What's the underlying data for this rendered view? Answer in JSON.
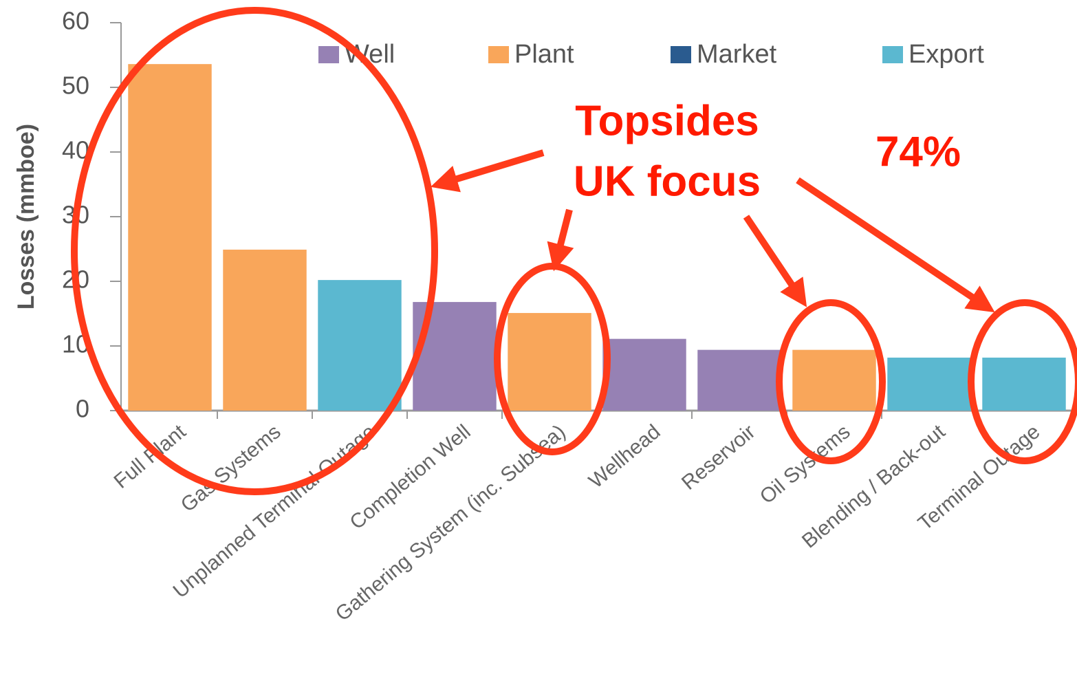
{
  "chart_data": {
    "type": "bar",
    "ylabel": "Losses (mmboe)",
    "categories": [
      "Full Plant",
      "Gas Systems",
      "Unplanned Terminal Outage",
      "Completion Well",
      "Gathering System (inc. Subsea)",
      "Wellhead",
      "Reservoir",
      "Oil Systems",
      "Blending / Back-out",
      "Terminal Outage"
    ],
    "series": [
      {
        "name": "Well",
        "color": "#9681b4",
        "values": [
          null,
          null,
          null,
          16.8,
          null,
          11.1,
          9.4,
          null,
          null,
          null
        ]
      },
      {
        "name": "Plant",
        "color": "#f9a65a",
        "values": [
          53.6,
          24.9,
          null,
          null,
          15.1,
          null,
          null,
          9.4,
          null,
          null
        ]
      },
      {
        "name": "Market",
        "color": "#2a5b8f",
        "values": [
          null,
          null,
          null,
          null,
          null,
          null,
          null,
          null,
          null,
          null
        ]
      },
      {
        "name": "Export",
        "color": "#5bb8d0",
        "values": [
          null,
          null,
          20.2,
          null,
          null,
          null,
          null,
          null,
          8.2,
          8.2
        ]
      }
    ],
    "ylim": [
      0,
      60
    ],
    "yticks": [
      0,
      10,
      20,
      30,
      40,
      50,
      60
    ],
    "annotations": [
      "Topsides",
      "UK focus",
      "74%"
    ]
  }
}
